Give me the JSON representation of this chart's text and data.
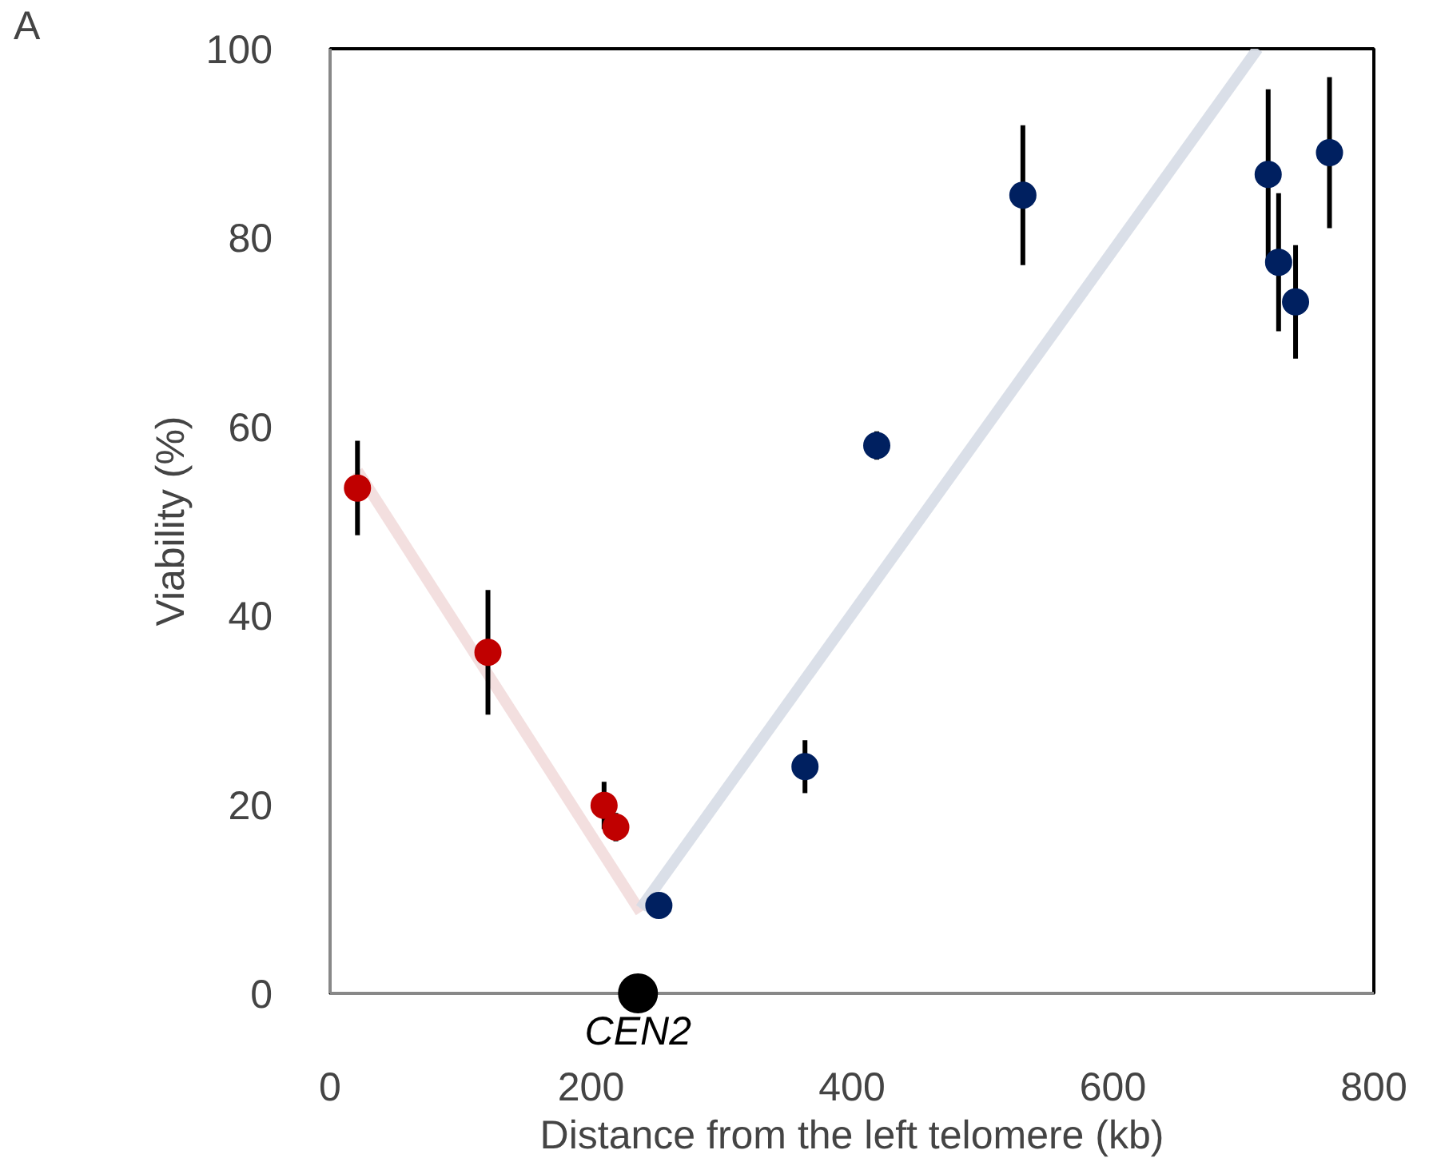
{
  "chart_data": {
    "type": "scatter",
    "xlabel": "Distance from the left telomere (kb)",
    "ylabel": "Viability (%)",
    "xlim": [
      0,
      800
    ],
    "xticks": [
      0,
      200,
      400,
      600,
      800
    ],
    "ylim": [
      0,
      100
    ],
    "yticks": [
      0,
      20,
      40,
      60,
      80,
      100
    ],
    "grid": false,
    "marker": "circle",
    "annotations": [
      "A"
    ],
    "series": [
      {
        "type": "line",
        "color": "#f2dcdb",
        "marker": "none",
        "x": [
          21,
          238
        ],
        "values": [
          55.3,
          8.6
        ]
      },
      {
        "type": "line",
        "color": "#d6dce5",
        "marker": "none",
        "x": [
          238,
          711
        ],
        "values": [
          9,
          100
        ]
      },
      {
        "color": "#c00000",
        "x": [
          21,
          121,
          210,
          219
        ],
        "values": [
          53.5,
          36.1,
          19.9,
          17.6
        ],
        "errors": [
          5,
          6.6,
          2.5,
          1.5
        ]
      },
      {
        "color": "#002060",
        "x": [
          252,
          364,
          419,
          531,
          719,
          727,
          740,
          766
        ],
        "values": [
          9.3,
          24,
          58,
          84.5,
          86.7,
          77.4,
          73.2,
          89
        ],
        "errors": [
          null,
          2.8,
          1.5,
          7.4,
          9,
          7.3,
          6,
          8
        ]
      },
      {
        "name": "CEN2",
        "color": "#000000",
        "x": [
          236
        ],
        "values": [
          0
        ]
      }
    ]
  }
}
